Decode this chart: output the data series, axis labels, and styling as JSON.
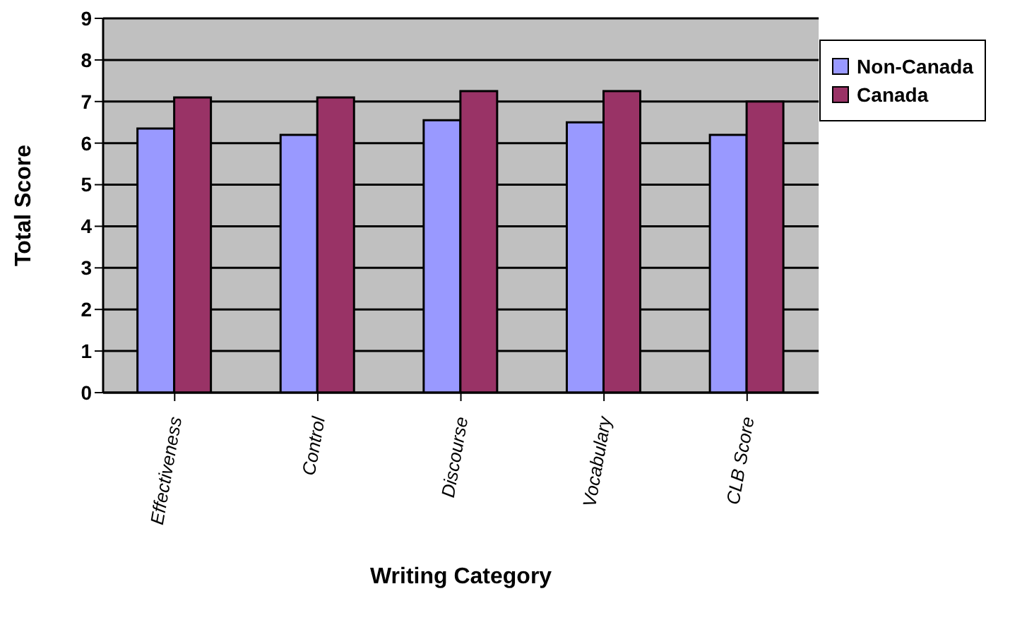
{
  "chart_data": {
    "type": "bar",
    "xlabel": "Writing Category",
    "ylabel": "Total Score",
    "categories": [
      "Effectiveness",
      "Control",
      "Discourse",
      "Vocabulary",
      "CLB Score"
    ],
    "series": [
      {
        "name": "Non-Canada",
        "color": "#9999ff",
        "values": [
          6.35,
          6.2,
          6.55,
          6.5,
          6.2
        ]
      },
      {
        "name": "Canada",
        "color": "#993366",
        "values": [
          7.1,
          7.1,
          7.25,
          7.25,
          7.0
        ]
      }
    ],
    "ylim": [
      0,
      9
    ],
    "yticks": [
      0,
      1,
      2,
      3,
      4,
      5,
      6,
      7,
      8,
      9
    ],
    "grid": "y",
    "legend": "right"
  }
}
